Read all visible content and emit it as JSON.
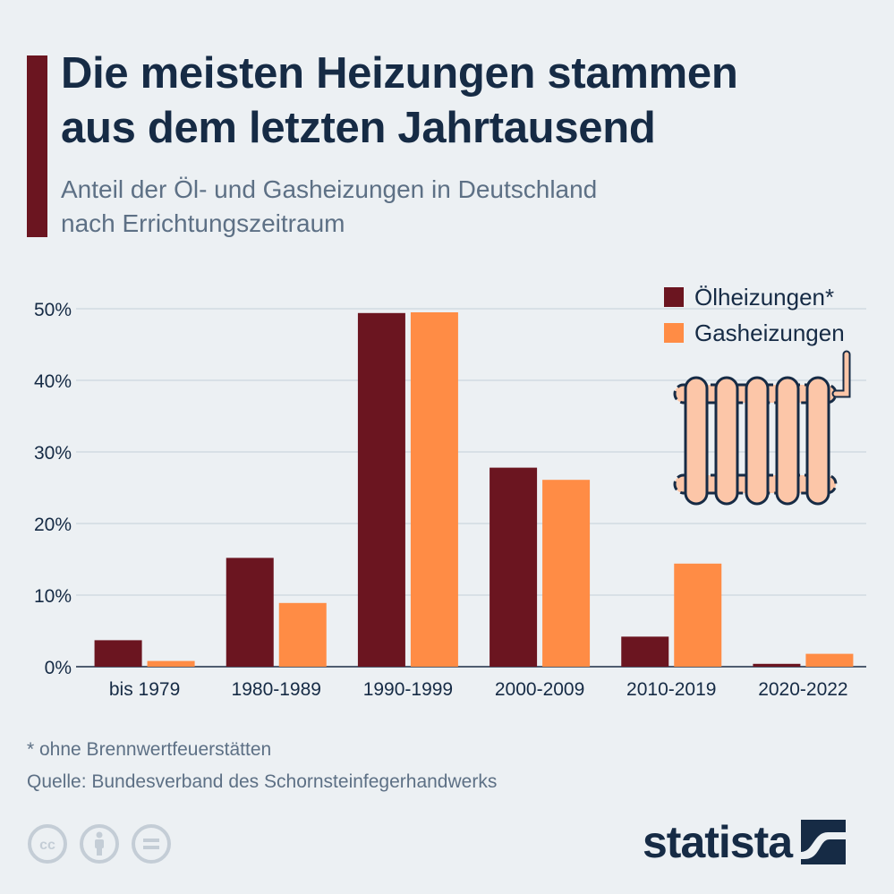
{
  "header": {
    "title_line1": "Die meisten Heizungen stammen",
    "title_line2": "aus dem letzten Jahrtausend",
    "subtitle_line1": "Anteil der Öl- und Gasheizungen in Deutschland",
    "subtitle_line2": "nach Errichtungszeitraum"
  },
  "colors": {
    "accent": "#6b1520",
    "oil": "#6b1520",
    "gas": "#ff8c45",
    "title": "#162b45",
    "muted": "#5d7085",
    "background": "#ecf0f3",
    "radiator_fill": "#fcc6a8",
    "radiator_stroke": "#162b45"
  },
  "chart_data": {
    "type": "bar",
    "categories": [
      "bis 1979",
      "1980-1989",
      "1990-1999",
      "2000-2009",
      "2010-2019",
      "2020-2022"
    ],
    "series": [
      {
        "name": "Ölheizungen*",
        "values": [
          3.7,
          15.2,
          49.4,
          27.8,
          4.2,
          0.4
        ]
      },
      {
        "name": "Gasheizungen",
        "values": [
          0.8,
          8.9,
          49.5,
          26.1,
          14.4,
          1.8
        ]
      }
    ],
    "ytick_labels": [
      "0%",
      "10%",
      "20%",
      "30%",
      "40%",
      "50%"
    ],
    "yticks": [
      0,
      10,
      20,
      30,
      40,
      50
    ],
    "ylim": [
      0,
      55
    ],
    "grid": true,
    "legend_position": "top-right",
    "decoration_icon": "radiator-icon"
  },
  "legend": {
    "oil_label": "Ölheizungen*",
    "gas_label": "Gasheizungen"
  },
  "footer": {
    "footnote": "* ohne Brennwertfeuerstätten",
    "source": "Quelle: Bundesverband des Schornsteinfegerhandwerks",
    "license_icons": [
      "cc-icon",
      "attribution-icon",
      "no-derivatives-icon"
    ],
    "brand": "statista",
    "brand_icon": "statista-logo-icon"
  }
}
